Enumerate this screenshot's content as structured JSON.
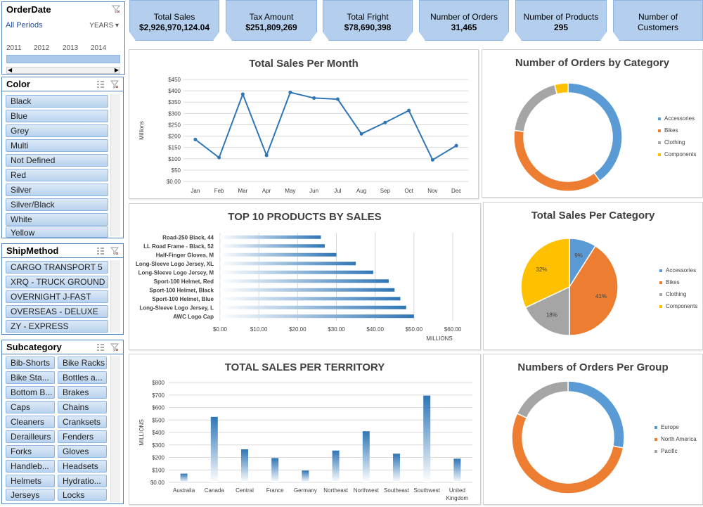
{
  "orderdate_slicer": {
    "title": "OrderDate",
    "period_label": "All Periods",
    "unit_label": "YEARS",
    "years": [
      "2011",
      "2012",
      "2013",
      "2014"
    ]
  },
  "color_slicer": {
    "title": "Color",
    "items": [
      "Black",
      "Blue",
      "Grey",
      "Multi",
      "Not Defined",
      "Red",
      "Silver",
      "Silver/Black",
      "White",
      "Yellow"
    ]
  },
  "shipmethod_slicer": {
    "title": "ShipMethod",
    "items": [
      "CARGO TRANSPORT 5",
      "XRQ - TRUCK GROUND",
      "OVERNIGHT J-FAST",
      "OVERSEAS - DELUXE",
      "ZY - EXPRESS"
    ]
  },
  "subcategory_slicer": {
    "title": "Subcategory",
    "items": [
      "Bib-Shorts",
      "Bike Racks",
      "Bike Sta...",
      "Bottles a...",
      "Bottom B...",
      "Brakes",
      "Caps",
      "Chains",
      "Cleaners",
      "Cranksets",
      "Derailleurs",
      "Fenders",
      "Forks",
      "Gloves",
      "Handleb...",
      "Headsets",
      "Helmets",
      "Hydratio...",
      "Jerseys",
      "Locks"
    ]
  },
  "kpis": [
    {
      "label": "Total Sales",
      "value": "$2,926,970,124.04"
    },
    {
      "label": "Tax Amount",
      "value": "$251,809,269"
    },
    {
      "label": "Total Fright",
      "value": "$78,690,398"
    },
    {
      "label": "Number of Orders",
      "value": "31,465"
    },
    {
      "label": "Number of Products",
      "value": "295"
    },
    {
      "label": "Number of Customers",
      "value": ""
    }
  ],
  "colors": {
    "blue": "#5b9bd5",
    "orange": "#ed7d31",
    "grey": "#a5a5a5",
    "yellow": "#ffc000",
    "line": "#2e75b6",
    "slicer_border": "#4f81bd"
  },
  "chart_data": [
    {
      "type": "line",
      "title": "Total Sales Per Month",
      "ylabel": "Millions",
      "categories": [
        "Jan",
        "Feb",
        "Mar",
        "Apr",
        "May",
        "Jun",
        "Jul",
        "Aug",
        "Sep",
        "Oct",
        "Nov",
        "Dec"
      ],
      "values": [
        185,
        105,
        385,
        115,
        393,
        368,
        363,
        210,
        260,
        313,
        95,
        158
      ],
      "ylim": [
        0,
        450
      ],
      "yticks": [
        "$0.00",
        "$50",
        "$100",
        "$150",
        "$200",
        "$250",
        "$300",
        "$350",
        "$400",
        "$450"
      ],
      "grid": true
    },
    {
      "type": "pie",
      "title": "Number of Orders by Category",
      "donut": true,
      "categories": [
        "Accessories",
        "Bikes",
        "Clothing",
        "Components"
      ],
      "values": [
        40,
        37,
        19,
        4
      ]
    },
    {
      "type": "bar",
      "title": "TOP 10 PRODUCTS BY SALES",
      "orientation": "horizontal",
      "xlabel": "MILLIONS",
      "categories": [
        "Road-250 Black, 44",
        "LL Road Frame - Black, 52",
        "Half-Finger Gloves, M",
        "Long-Sleeve Logo Jersey, XL",
        "Long-Sleeve Logo Jersey, M",
        "Sport-100 Helmet, Red",
        "Sport-100 Helmet, Black",
        "Sport-100 Helmet, Blue",
        "Long-Sleeve Logo Jersey, L",
        "AWC Logo Cap"
      ],
      "values": [
        26,
        27,
        30,
        35,
        39.5,
        43.5,
        45,
        46.5,
        48,
        50
      ],
      "xlim": [
        0,
        60
      ],
      "xticks": [
        "$0.00",
        "$10.00",
        "$20.00",
        "$30.00",
        "$40.00",
        "$50.00",
        "$60.00"
      ],
      "grid": true
    },
    {
      "type": "pie",
      "title": "Total Sales Per Category",
      "categories": [
        "Accessories",
        "Bikes",
        "Clothing",
        "Components"
      ],
      "values": [
        9,
        41,
        18,
        32
      ],
      "data_labels": [
        "9%",
        "41%",
        "18%",
        "32%"
      ]
    },
    {
      "type": "bar",
      "title": "TOTAL SALES PER TERRITORY",
      "ylabel": "MILLIONS",
      "categories": [
        "Australia",
        "Canada",
        "Central",
        "France",
        "Germany",
        "Northeast",
        "Northwest",
        "Southeast",
        "Southwest",
        "United Kingdom"
      ],
      "values": [
        70,
        525,
        265,
        195,
        95,
        255,
        410,
        230,
        695,
        190
      ],
      "ylim": [
        0,
        800
      ],
      "yticks": [
        "$0.00",
        "$100",
        "$200",
        "$300",
        "$400",
        "$500",
        "$600",
        "$700",
        "$800"
      ],
      "grid": true
    },
    {
      "type": "pie",
      "title": "Numbers of Orders Per Group",
      "donut": true,
      "categories": [
        "Europe",
        "North America",
        "Pacific"
      ],
      "values": [
        28,
        54,
        18
      ]
    }
  ]
}
